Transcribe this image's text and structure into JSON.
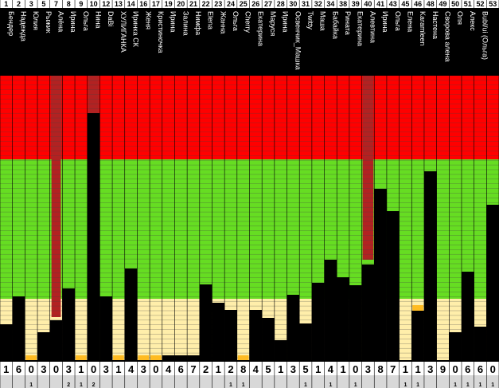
{
  "chart_data": {
    "type": "bar",
    "columns": [
      {
        "num": "1",
        "name": "Бендер",
        "black": 45,
        "orange": 0,
        "top": "1",
        "bottom": ""
      },
      {
        "num": "2",
        "name": "Надежда",
        "black": 80,
        "orange": 0,
        "top": "6",
        "bottom": ""
      },
      {
        "num": "3",
        "name": "Юлия",
        "black": 0,
        "orange": 6,
        "top": "0",
        "bottom": "1"
      },
      {
        "num": "5",
        "name": "Рыжик",
        "black": 35,
        "orange": 0,
        "top": "3",
        "bottom": ""
      },
      {
        "num": "7",
        "name": "Алёна",
        "black": 50,
        "orange": 0,
        "top": "0",
        "bottom": ""
      },
      {
        "num": "8",
        "name": "Ирина",
        "black": 90,
        "orange": 0,
        "top": "3",
        "bottom": "2"
      },
      {
        "num": "9",
        "name": "Ольга",
        "black": 0,
        "orange": 6,
        "top": "1",
        "bottom": "1"
      },
      {
        "num": "10",
        "name": "Нина",
        "black": 310,
        "orange": 0,
        "top": "0",
        "bottom": "2"
      },
      {
        "num": "12",
        "name": "DaBi",
        "black": 80,
        "orange": 0,
        "top": "3",
        "bottom": ""
      },
      {
        "num": "13",
        "name": "ХУЛИГАНКА",
        "black": 0,
        "orange": 6,
        "top": "1",
        "bottom": ""
      },
      {
        "num": "14",
        "name": "Иринка СК",
        "black": 115,
        "orange": 0,
        "top": "4",
        "bottom": ""
      },
      {
        "num": "16",
        "name": "Женя",
        "black": 0,
        "orange": 6,
        "top": "3",
        "bottom": ""
      },
      {
        "num": "17",
        "name": "Кристиночка",
        "black": 0,
        "orange": 6,
        "top": "0",
        "bottom": ""
      },
      {
        "num": "19",
        "name": "Ирина",
        "black": 6,
        "orange": 0,
        "top": "4",
        "bottom": ""
      },
      {
        "num": "20",
        "name": "Залина",
        "black": 6,
        "orange": 0,
        "top": "6",
        "bottom": ""
      },
      {
        "num": "21",
        "name": "Нимфа",
        "black": 6,
        "orange": 0,
        "top": "7",
        "bottom": ""
      },
      {
        "num": "22",
        "name": "Elena",
        "black": 95,
        "orange": 0,
        "top": "2",
        "bottom": ""
      },
      {
        "num": "23",
        "name": "Жанна",
        "black": 72,
        "orange": 0,
        "top": "1",
        "bottom": ""
      },
      {
        "num": "24",
        "name": "Ольга",
        "black": 63,
        "orange": 0,
        "top": "2",
        "bottom": "1"
      },
      {
        "num": "25",
        "name": "Cherry",
        "black": 0,
        "orange": 6,
        "top": "8",
        "bottom": "1"
      },
      {
        "num": "26",
        "name": "Екатерина",
        "black": 63,
        "orange": 0,
        "top": "4",
        "bottom": ""
      },
      {
        "num": "27",
        "name": "Маруся",
        "black": 53,
        "orange": 0,
        "top": "5",
        "bottom": ""
      },
      {
        "num": "28",
        "name": "Ирина",
        "black": 25,
        "orange": 0,
        "top": "1",
        "bottom": ""
      },
      {
        "num": "30",
        "name": "Освенчик_Машка",
        "black": 82,
        "orange": 0,
        "top": "3",
        "bottom": ""
      },
      {
        "num": "31",
        "name": "Twitty",
        "black": 46,
        "orange": 0,
        "top": "5",
        "bottom": "1"
      },
      {
        "num": "32",
        "name": "Маша",
        "black": 97,
        "orange": 0,
        "top": "1",
        "bottom": ""
      },
      {
        "num": "34",
        "name": "Бабайка",
        "black": 126,
        "orange": 0,
        "top": "4",
        "bottom": "1"
      },
      {
        "num": "38",
        "name": "Рината",
        "black": 104,
        "orange": 0,
        "top": "1",
        "bottom": ""
      },
      {
        "num": "39",
        "name": "Екатерина",
        "black": 94,
        "orange": 0,
        "top": "0",
        "bottom": "1"
      },
      {
        "num": "40",
        "name": "Алевтина",
        "black": 120,
        "orange": 0,
        "top": "3",
        "bottom": ""
      },
      {
        "num": "41",
        "name": "Ирина",
        "black": 215,
        "orange": 0,
        "top": "8",
        "bottom": ""
      },
      {
        "num": "43",
        "name": "Ольга",
        "black": 187,
        "orange": 0,
        "top": "7",
        "bottom": ""
      },
      {
        "num": "45",
        "name": "Елена",
        "black": 0,
        "orange": 0,
        "top": "1",
        "bottom": "1"
      },
      {
        "num": "46",
        "name": "Karamleen",
        "black": 62,
        "orange": 7,
        "top": "1",
        "bottom": "1"
      },
      {
        "num": "48",
        "name": "Настена",
        "black": 237,
        "orange": 0,
        "top": "3",
        "bottom": ""
      },
      {
        "num": "49",
        "name": "Сворова алена",
        "black": 0,
        "orange": 0,
        "top": "9",
        "bottom": ""
      },
      {
        "num": "50",
        "name": "Оля",
        "black": 35,
        "orange": 0,
        "top": "0",
        "bottom": "1"
      },
      {
        "num": "51",
        "name": "Алекс",
        "black": 111,
        "orange": 0,
        "top": "6",
        "bottom": "1"
      },
      {
        "num": "52",
        "name": "Bubl/ui (Ольга)",
        "black": 42,
        "orange": 0,
        "top": "6",
        "bottom": "1"
      },
      {
        "num": "53",
        "name": "",
        "black": 195,
        "orange": 0,
        "top": "0",
        "bottom": "1"
      }
    ],
    "marked_columns": [
      "7",
      "10",
      "40"
    ],
    "colors": {
      "red": "#ff0000",
      "dark_red": "#b22222",
      "green": "#66dd22",
      "cream": "#ffeeaa",
      "black": "#000000",
      "orange": "#ffbb22",
      "grid": "#444444"
    }
  }
}
